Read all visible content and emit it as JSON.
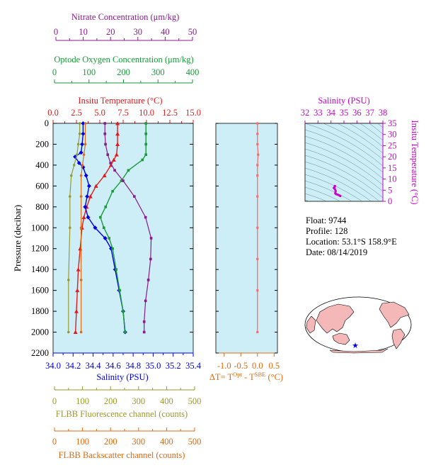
{
  "float_info": {
    "float": "Float:  9744",
    "profile": "Profile:  128",
    "location": "Location:  53.1°S  158.9°E",
    "date": "Date:  08/14/2019"
  },
  "colors": {
    "temperature": "#e41a1c",
    "salinity": "#0000e0",
    "oxygen": "#1a9a3a",
    "nitrate": "#8b1a8b",
    "fluorescence": "#9a9a2a",
    "backscatter": "#e06a10",
    "delta_t": "#f07070",
    "panel_bg": "#cdeef7",
    "ts_line": "#cc00cc"
  },
  "chart_data": [
    {
      "type": "line",
      "name": "main-profile",
      "ylabel": "Pressure (decibar)",
      "ylim": [
        2200,
        0
      ],
      "yticks": [
        "0",
        "200",
        "400",
        "600",
        "800",
        "1000",
        "1200",
        "1400",
        "1600",
        "1800",
        "2000",
        "2200"
      ],
      "axes": {
        "nitrate": {
          "label": "Nitrate Concentration (μm/kg)",
          "ticks": [
            "0",
            "10",
            "20",
            "30",
            "40",
            "50"
          ],
          "range": [
            0,
            50
          ]
        },
        "oxygen": {
          "label": "Optode Oxygen Concentration (μm/kg)",
          "ticks": [
            "0",
            "100",
            "200",
            "300",
            "400"
          ],
          "range": [
            0,
            400
          ]
        },
        "temperature": {
          "label": "Insitu Temperature (°C)",
          "ticks": [
            "0.0",
            "2.5",
            "5.0",
            "7.5",
            "10.0",
            "12.5",
            "15.0"
          ],
          "range": [
            0,
            15
          ]
        },
        "salinity": {
          "label": "Salinity (PSU)",
          "ticks": [
            "34.0",
            "34.2",
            "34.4",
            "34.6",
            "34.8",
            "35.0",
            "35.2",
            "35.4"
          ],
          "range": [
            34.0,
            35.4
          ]
        },
        "fluorescence": {
          "label": "FLBB Fluorescence channel (counts)",
          "ticks": [
            "0",
            "100",
            "200",
            "300",
            "400",
            "500"
          ],
          "range": [
            0,
            500
          ]
        },
        "backscatter": {
          "label": "FLBB Backscatter channel (counts)",
          "ticks": [
            "0",
            "100",
            "200",
            "300",
            "400",
            "500"
          ],
          "range": [
            0,
            500
          ]
        }
      },
      "series": [
        {
          "name": "temperature",
          "axis": "temperature",
          "marker": "triangle",
          "points": [
            [
              6.9,
              0
            ],
            [
              6.9,
              100
            ],
            [
              6.9,
              200
            ],
            [
              6.8,
              300
            ],
            [
              6.5,
              350
            ],
            [
              6.2,
              400
            ],
            [
              5.5,
              500
            ],
            [
              4.6,
              600
            ],
            [
              4.0,
              700
            ],
            [
              3.6,
              800
            ],
            [
              3.3,
              900
            ],
            [
              3.1,
              1000
            ],
            [
              2.9,
              1200
            ],
            [
              2.7,
              1400
            ],
            [
              2.6,
              1600
            ],
            [
              2.5,
              1800
            ],
            [
              2.4,
              2000
            ]
          ]
        },
        {
          "name": "salinity",
          "axis": "salinity",
          "marker": "diamond",
          "points": [
            [
              34.3,
              0
            ],
            [
              34.3,
              100
            ],
            [
              34.29,
              200
            ],
            [
              34.28,
              280
            ],
            [
              34.22,
              320
            ],
            [
              34.26,
              380
            ],
            [
              34.3,
              420
            ],
            [
              34.33,
              500
            ],
            [
              34.36,
              600
            ],
            [
              34.34,
              700
            ],
            [
              34.32,
              800
            ],
            [
              34.35,
              900
            ],
            [
              34.42,
              1000
            ],
            [
              34.52,
              1100
            ],
            [
              34.58,
              1200
            ],
            [
              34.62,
              1400
            ],
            [
              34.66,
              1600
            ],
            [
              34.7,
              1800
            ],
            [
              34.72,
              2000
            ]
          ]
        },
        {
          "name": "oxygen",
          "axis": "oxygen",
          "marker": "square",
          "points": [
            [
              265,
              0
            ],
            [
              265,
              100
            ],
            [
              265,
              200
            ],
            [
              265,
              300
            ],
            [
              255,
              350
            ],
            [
              215,
              450
            ],
            [
              195,
              550
            ],
            [
              170,
              650
            ],
            [
              150,
              800
            ],
            [
              135,
              900
            ],
            [
              145,
              1000
            ],
            [
              160,
              1100
            ],
            [
              170,
              1200
            ],
            [
              180,
              1400
            ],
            [
              190,
              1600
            ],
            [
              200,
              1800
            ],
            [
              205,
              2000
            ]
          ]
        },
        {
          "name": "nitrate",
          "axis": "nitrate",
          "marker": "square",
          "points": [
            [
              18.5,
              0
            ],
            [
              18.5,
              100
            ],
            [
              18.7,
              200
            ],
            [
              19.5,
              300
            ],
            [
              20.5,
              380
            ],
            [
              22,
              450
            ],
            [
              25,
              550
            ],
            [
              29,
              700
            ],
            [
              33,
              900
            ],
            [
              35,
              1100
            ],
            [
              34.8,
              1300
            ],
            [
              34,
              1500
            ],
            [
              33,
              1700
            ],
            [
              32.5,
              1900
            ],
            [
              32.5,
              2000
            ]
          ]
        },
        {
          "name": "fluorescence",
          "axis": "fluorescence",
          "marker": "circle",
          "points": [
            [
              95,
              0
            ],
            [
              95,
              100
            ],
            [
              90,
              200
            ],
            [
              85,
              300
            ],
            [
              75,
              400
            ],
            [
              65,
              500
            ],
            [
              60,
              700
            ],
            [
              60,
              1000
            ],
            [
              55,
              1500
            ],
            [
              55,
              2000
            ]
          ]
        },
        {
          "name": "backscatter",
          "axis": "backscatter",
          "marker": "circle",
          "points": [
            [
              115,
              0
            ],
            [
              115,
              200
            ],
            [
              110,
              300
            ],
            [
              105,
              400
            ],
            [
              100,
              500
            ],
            [
              100,
              700
            ],
            [
              100,
              1000
            ],
            [
              100,
              1500
            ],
            [
              100,
              2000
            ]
          ]
        }
      ]
    },
    {
      "type": "line",
      "name": "delta-t",
      "xlabel": "ΔT= T",
      "xlabel_sup1": "Opt",
      "xlabel_mid": " - T",
      "xlabel_sup2": "SBE",
      "xlabel_unit": " (°C)",
      "xticks": [
        "-1.0",
        "-0.5",
        "0.0",
        "0.5"
      ],
      "xlim": [
        -1.25,
        0.6
      ],
      "points": [
        [
          0.0,
          0
        ],
        [
          0.0,
          100
        ],
        [
          0.0,
          200
        ],
        [
          0.02,
          300
        ],
        [
          0.0,
          400
        ],
        [
          0.0,
          500
        ],
        [
          0.0,
          700
        ],
        [
          0.0,
          1000
        ],
        [
          0.0,
          1300
        ],
        [
          0.0,
          1600
        ],
        [
          0.0,
          2000
        ]
      ]
    },
    {
      "type": "scatter",
      "name": "ts-diagram",
      "xlabel": "Salinity (PSU)",
      "ylabel": "Insitu Temperature (°C)",
      "xticks": [
        "32",
        "33",
        "34",
        "35",
        "36",
        "37",
        "38"
      ],
      "yticks": [
        "0",
        "5",
        "10",
        "15",
        "20",
        "25",
        "30",
        "35"
      ],
      "xlim": [
        32,
        38
      ],
      "ylim": [
        0,
        35
      ],
      "points": [
        [
          34.3,
          6.9
        ],
        [
          34.3,
          6.8
        ],
        [
          34.28,
          6.5
        ],
        [
          34.22,
          6.0
        ],
        [
          34.3,
          5.5
        ],
        [
          34.36,
          4.6
        ],
        [
          34.33,
          3.6
        ],
        [
          34.4,
          3.2
        ],
        [
          34.55,
          2.9
        ],
        [
          34.66,
          2.6
        ],
        [
          34.72,
          2.4
        ]
      ]
    }
  ]
}
